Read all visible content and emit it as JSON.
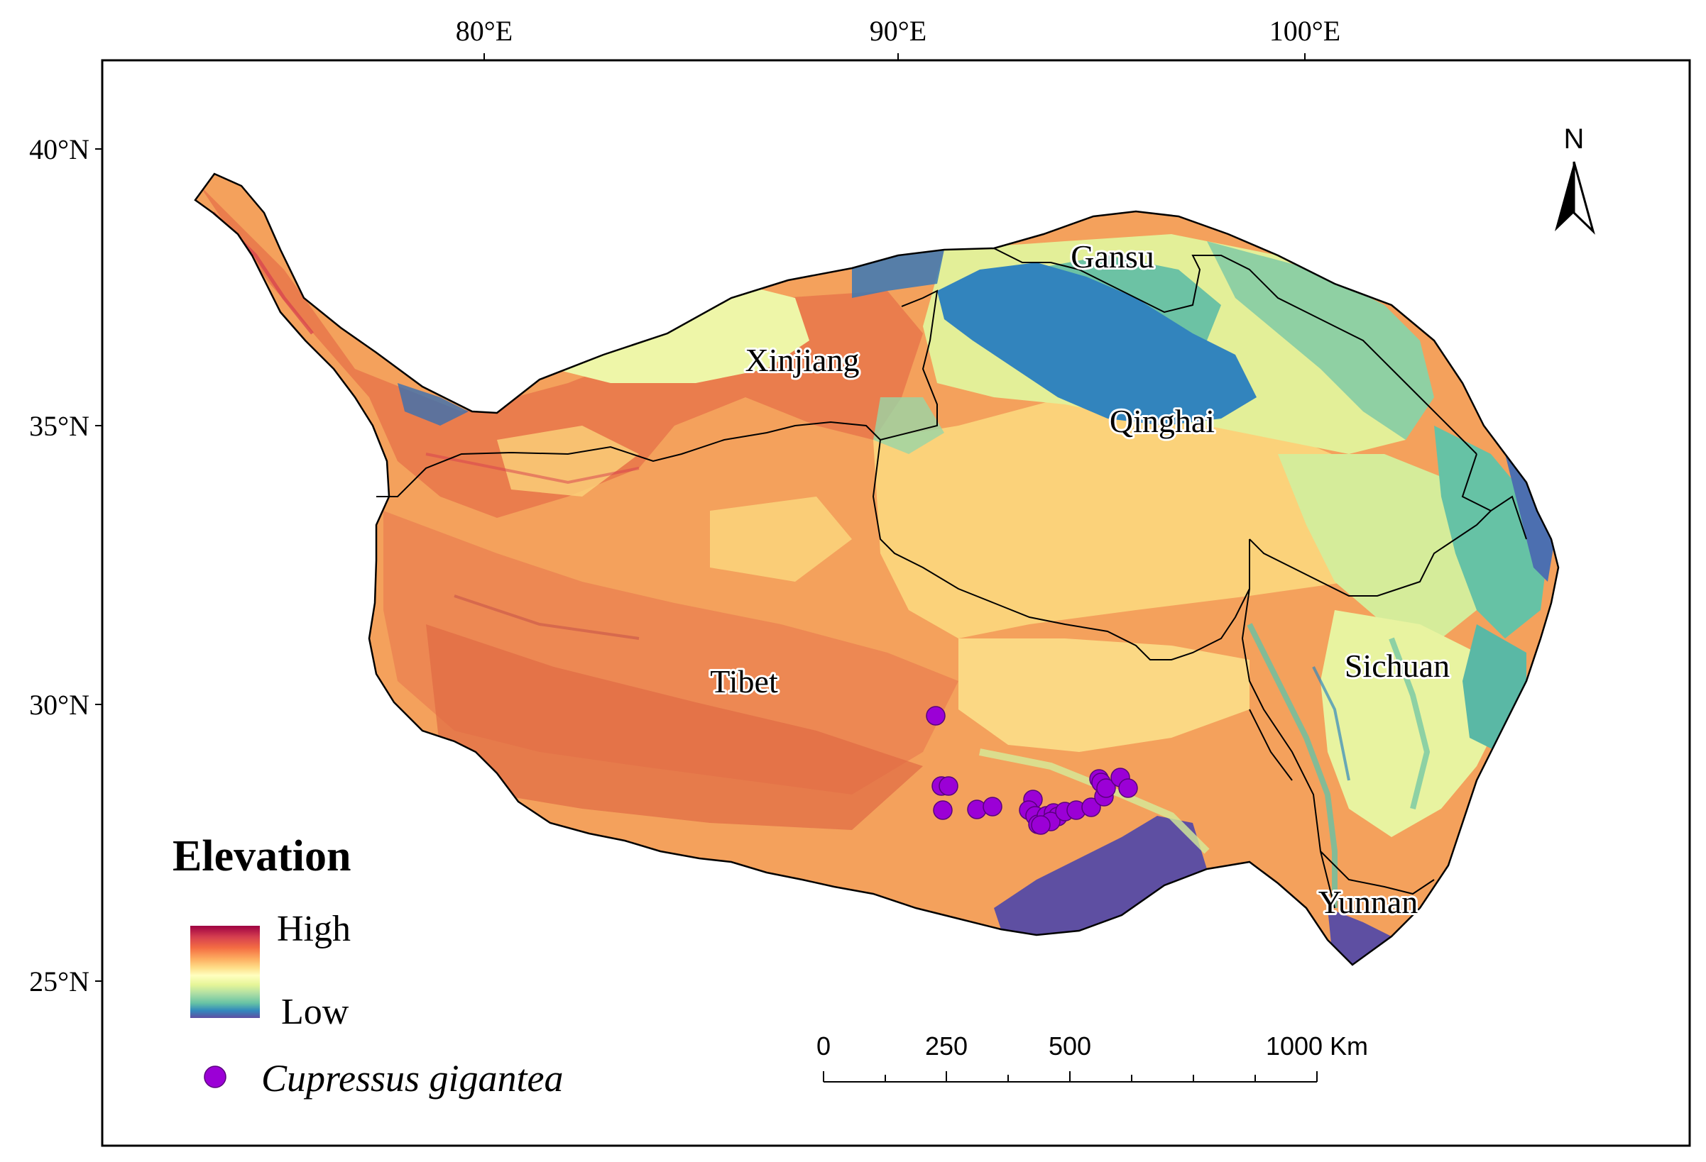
{
  "map": {
    "graticule": {
      "longitude_labels": [
        "80°E",
        "90°E",
        "100°E"
      ],
      "latitude_labels": [
        "40°N",
        "35°N",
        "30°N",
        "25°N"
      ]
    },
    "region_labels": {
      "xinjiang": "Xinjiang",
      "gansu": "Gansu",
      "qinghai": "Qinghai",
      "tibet": "Tibet",
      "sichuan": "Sichuan",
      "yunnan": "Yunnan"
    },
    "north_arrow": {
      "label": "N",
      "icon": "north-arrow-icon"
    },
    "scale_bar": {
      "labels": [
        "0",
        "250",
        "500",
        "1000 Km"
      ]
    },
    "legend": {
      "title": "Elevation",
      "high_label": "High",
      "low_label": "Low",
      "species_label": "Cupressus gigantea",
      "species_color": "#9b00d6",
      "ramp_colors": [
        "#9e0142",
        "#d53e4f",
        "#f46d43",
        "#fdae61",
        "#fee08b",
        "#ffffbf",
        "#e6f598",
        "#abdda4",
        "#66c2a5",
        "#3288bd",
        "#5e4fa2"
      ]
    },
    "colors": {
      "high": "#e8774a",
      "mid_high": "#f5a15c",
      "mid": "#fbd27a",
      "mid_low": "#e3ef98",
      "low": "#6cc2a4",
      "lake_basin": "#3284bd",
      "lowest": "#5e4fa2"
    }
  }
}
